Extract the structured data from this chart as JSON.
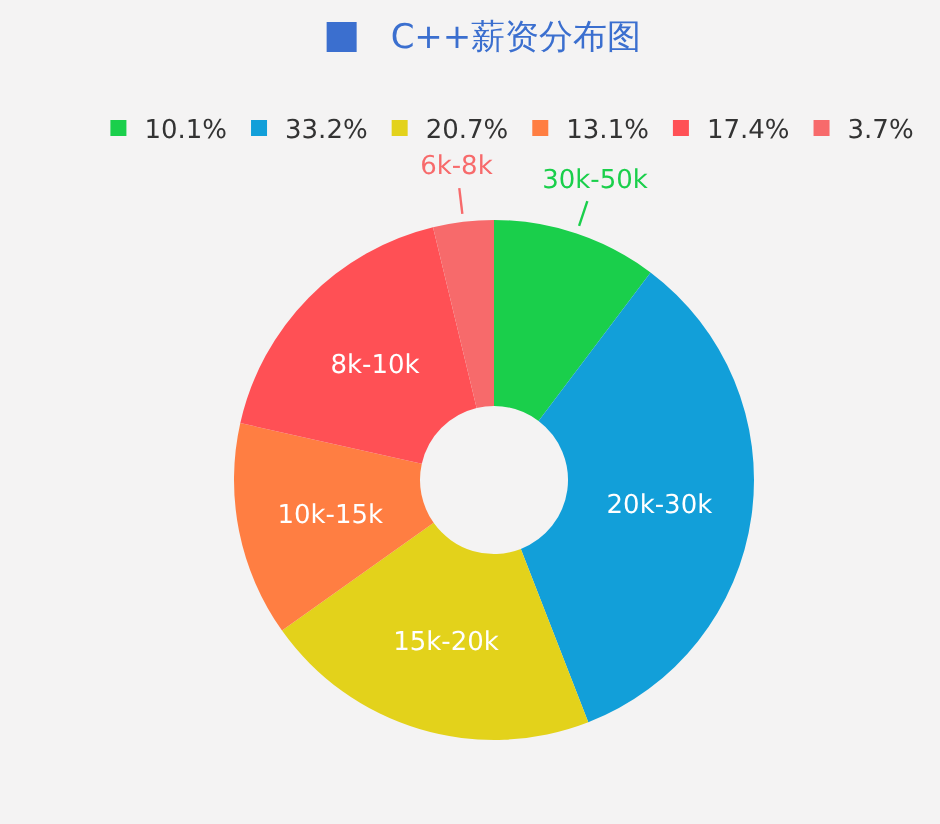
{
  "chart_data": {
    "type": "donut",
    "title": "C++薪资分布图",
    "categories": [
      "10.1%",
      "33.2%",
      "20.7%",
      "13.1%",
      "17.4%",
      "3.7%"
    ],
    "values": [
      10.1,
      33.2,
      20.7,
      13.1,
      17.4,
      3.7
    ],
    "annotations": [
      "30k-50k",
      "20k-30k",
      "15k-20k",
      "10k-15k",
      "8k-10k",
      "6k-8k"
    ],
    "colors": [
      "#1acf4b",
      "#129fd9",
      "#e3d21b",
      "#ff7e42",
      "#ff5055",
      "#f76a6b"
    ],
    "legend": "top"
  }
}
